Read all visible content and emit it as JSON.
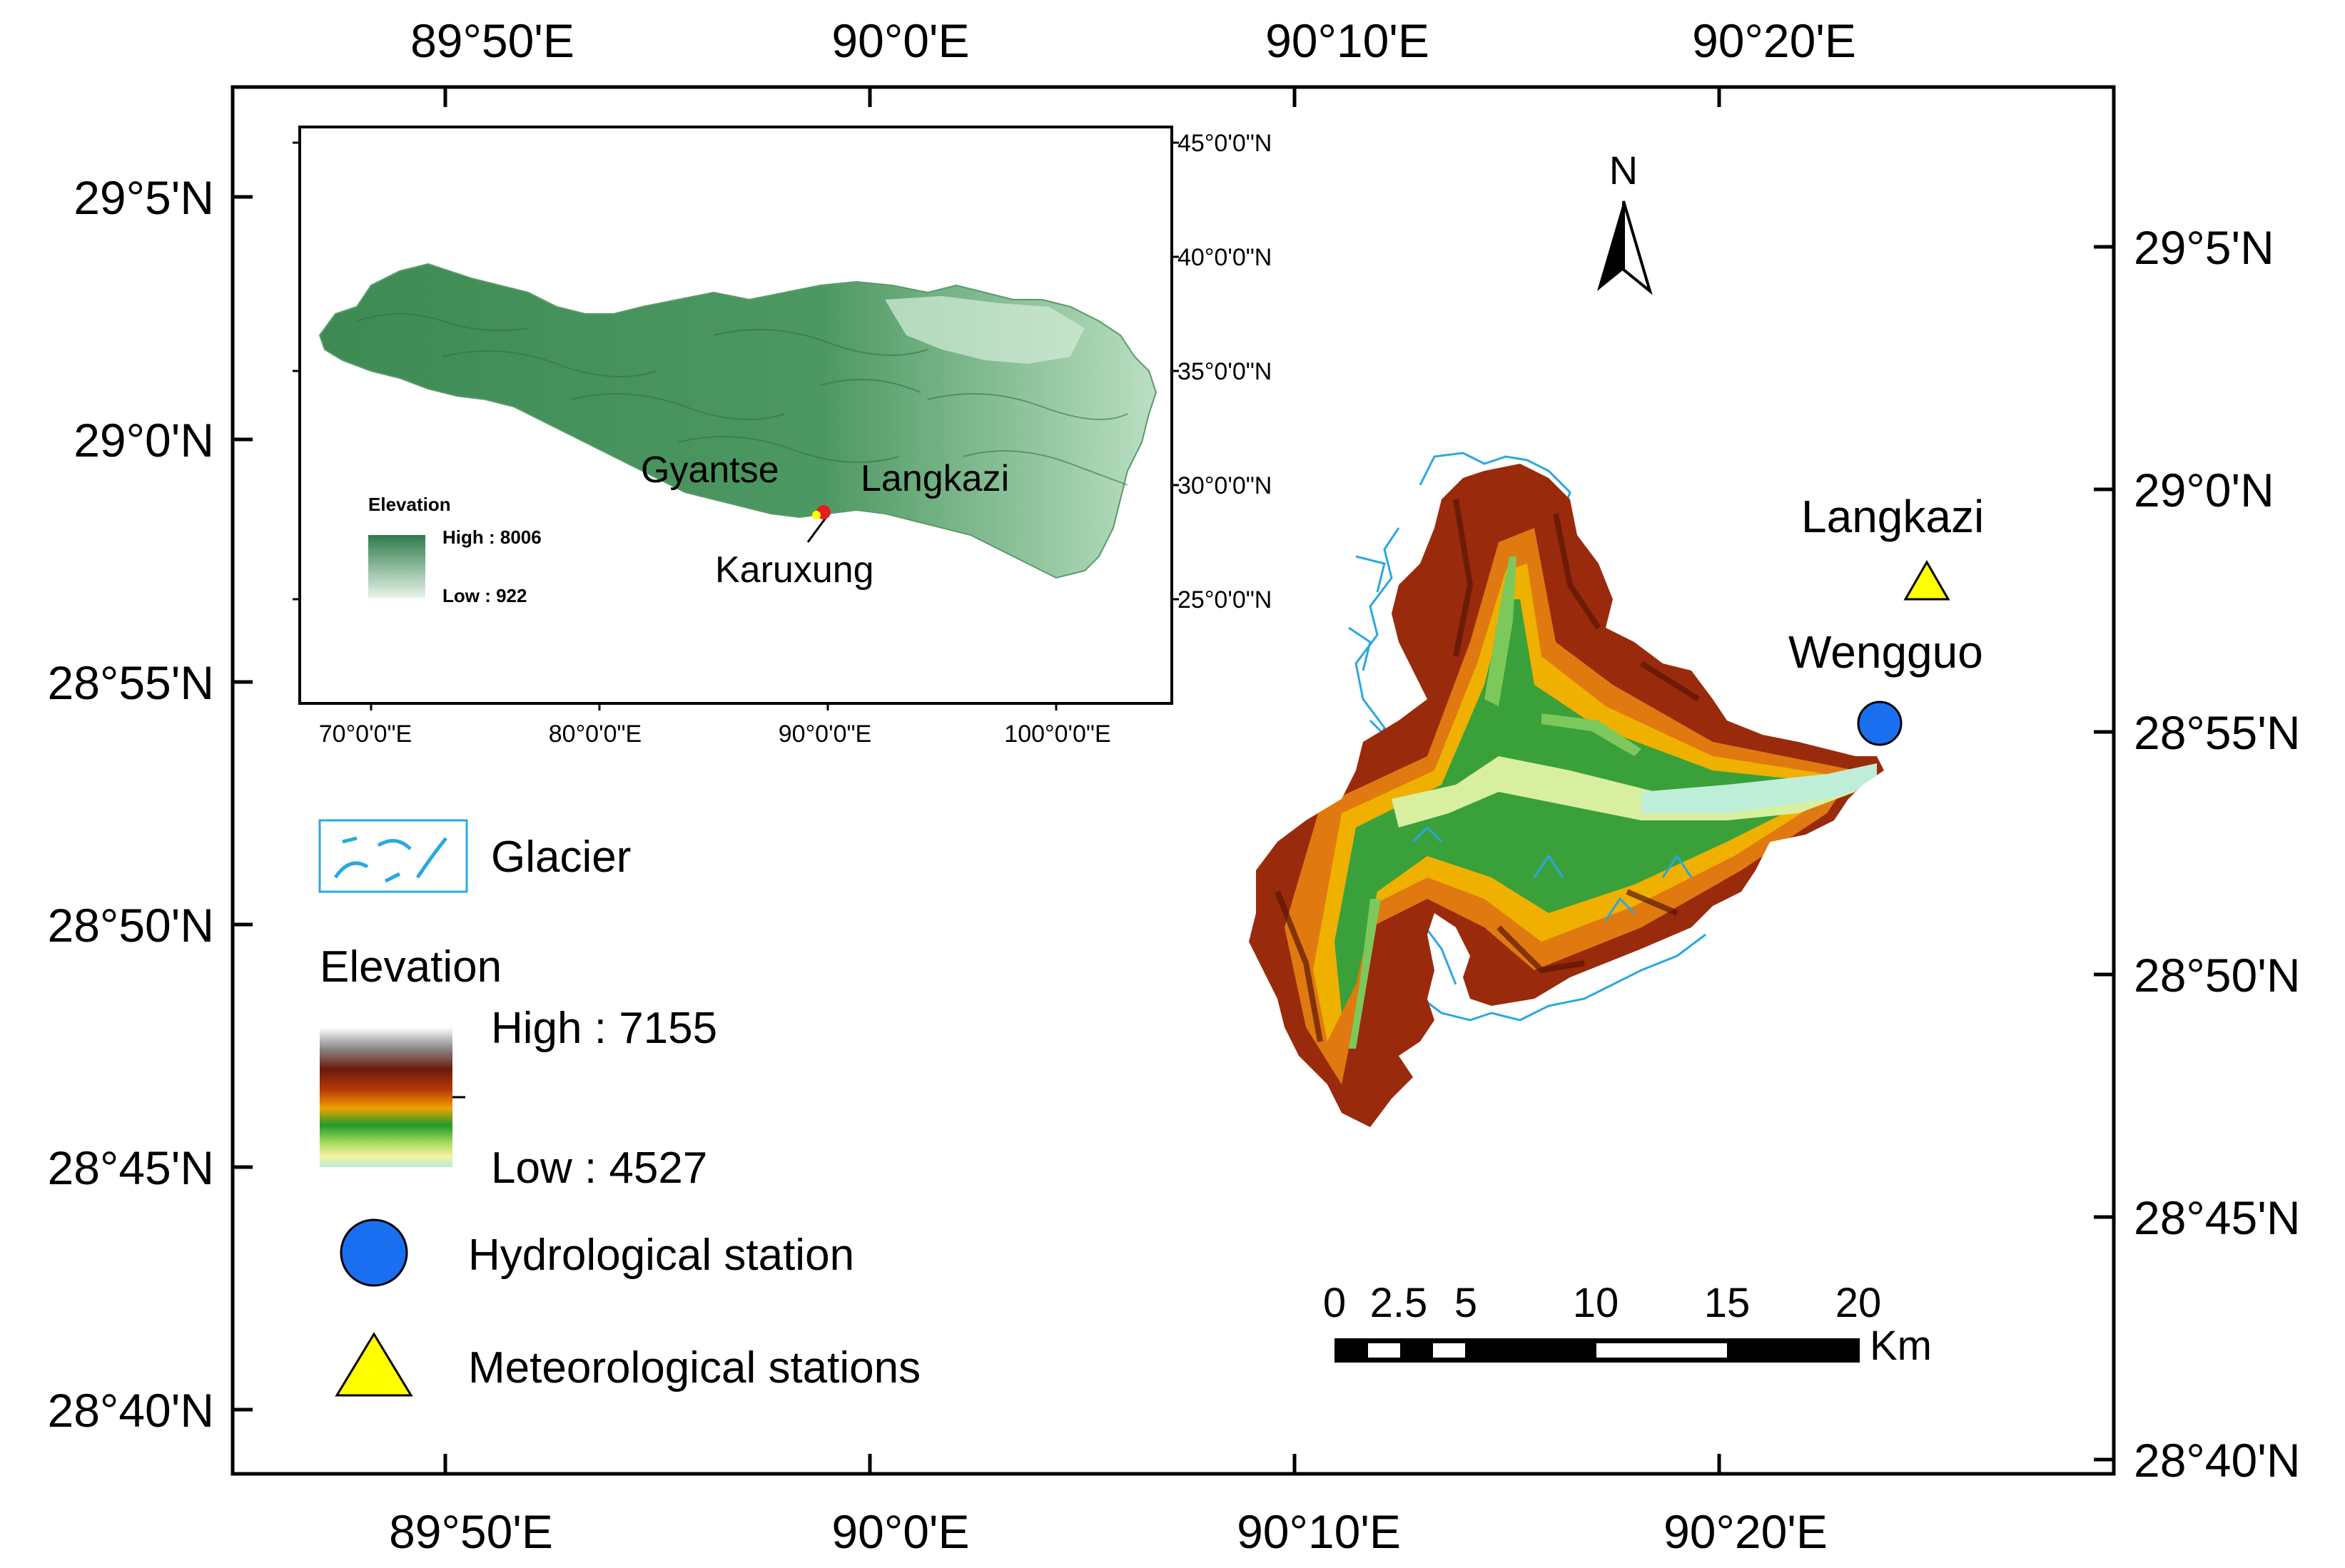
{
  "axes": {
    "top_lon": [
      "89°50'E",
      "90°0'E",
      "90°10'E",
      "90°20'E"
    ],
    "bottom_lon": [
      "89°50'E",
      "90°0'E",
      "90°10'E",
      "90°20'E"
    ],
    "left_lat": [
      "29°5'N",
      "29°0'N",
      "28°55'N",
      "28°50'N",
      "28°45'N",
      "28°40'N"
    ],
    "right_lat": [
      "29°5'N",
      "29°0'N",
      "28°55'N",
      "28°50'N",
      "28°45'N",
      "28°40'N"
    ]
  },
  "north_arrow": {
    "label": "N"
  },
  "stations": {
    "meteorological": "Langkazi",
    "hydrological": "Wengguo"
  },
  "legend": {
    "glacier": "Glacier",
    "elevation_title": "Elevation",
    "elevation_high": "High : 7155",
    "elevation_low": "Low : 4527",
    "hydrological": "Hydrological station",
    "meteorological": "Meteorological stations"
  },
  "scale_bar": {
    "ticks": [
      "0",
      "2.5",
      "5",
      "10",
      "15",
      "20"
    ],
    "unit": "Km"
  },
  "inset": {
    "lat_labels": [
      "45°0'0\"N",
      "40°0'0\"N",
      "35°0'0\"N",
      "30°0'0\"N",
      "25°0'0\"N"
    ],
    "lon_labels": [
      "70°0'0\"E",
      "80°0'0\"E",
      "90°0'0\"E",
      "100°0'0\"E"
    ],
    "place_labels": {
      "gyantse": "Gyantse",
      "langkazi": "Langkazi",
      "karuxung": "Karuxung"
    },
    "legend_title": "Elevation",
    "legend_high": "High : 8006",
    "legend_low": "Low : 922"
  },
  "colors": {
    "glacier": "#29a8e0",
    "hydro_station": "#1a6ff0",
    "met_station": "#ffff00",
    "plateau": "#3f8a55"
  }
}
